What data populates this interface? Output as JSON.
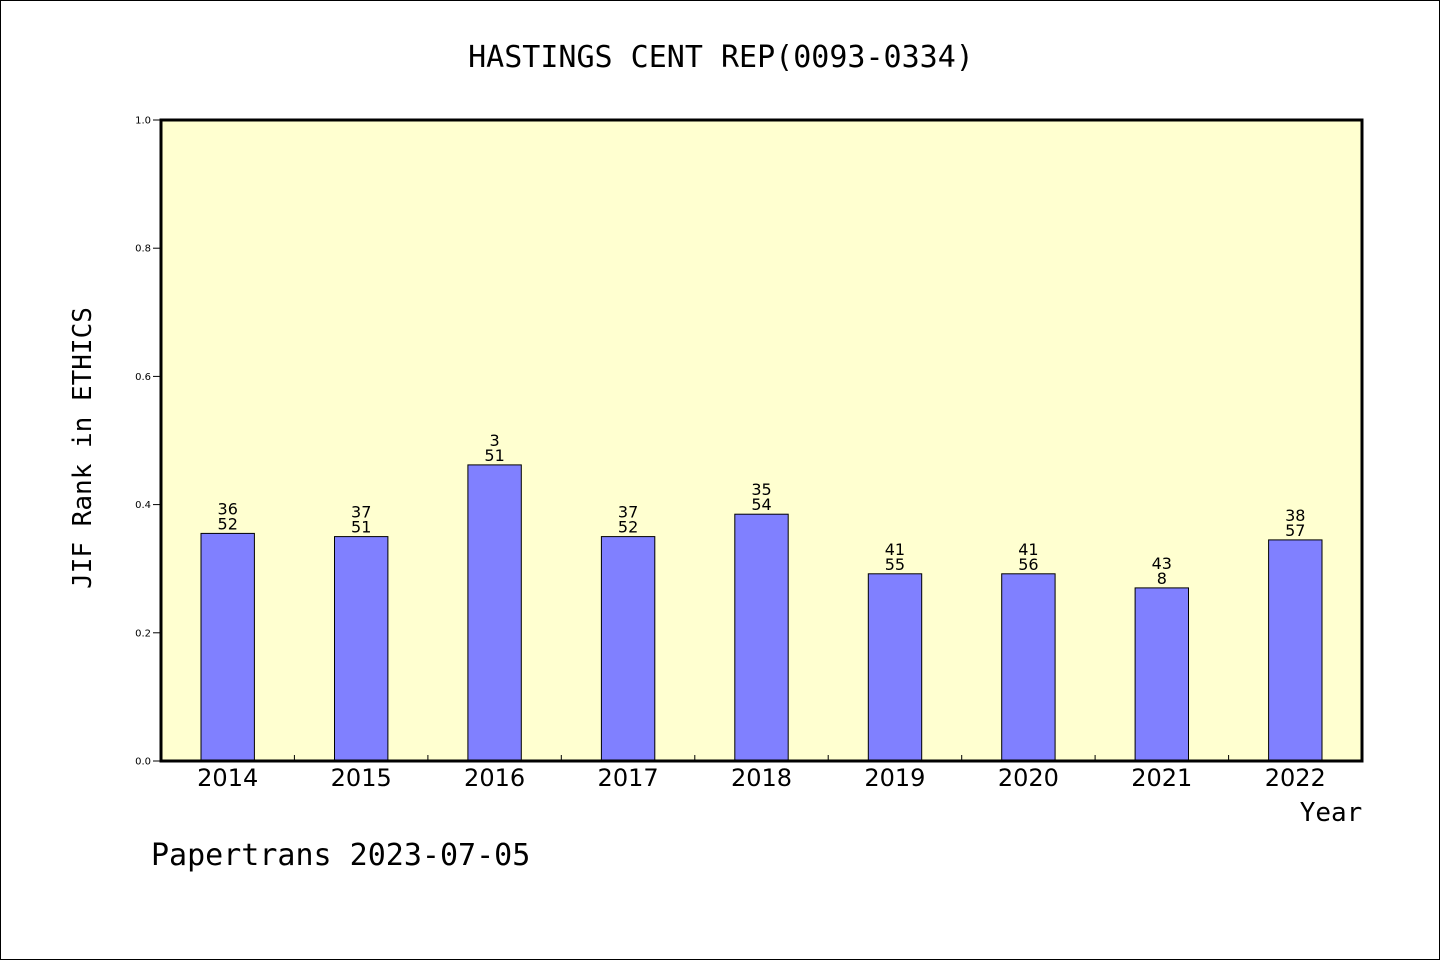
{
  "chart_data": {
    "type": "bar",
    "title": "HASTINGS CENT REP(0093-0334)",
    "xlabel": "Year",
    "ylabel": "JIF Rank in ETHICS",
    "ylim": [
      0,
      1.0
    ],
    "yticks": [
      "0.0",
      "0.2",
      "0.4",
      "0.6",
      "0.8",
      "1.0"
    ],
    "categories": [
      "2014",
      "2015",
      "2016",
      "2017",
      "2018",
      "2019",
      "2020",
      "2021",
      "2022"
    ],
    "values": [
      0.355,
      0.35,
      0.462,
      0.35,
      0.385,
      0.292,
      0.292,
      0.27,
      0.345
    ],
    "labels_top": [
      "36",
      "37",
      "3",
      "37",
      "35",
      "41",
      "41",
      "43",
      "38"
    ],
    "labels_bottom": [
      "52",
      "51",
      "51",
      "52",
      "54",
      "55",
      "56",
      "8",
      "57"
    ],
    "colors": {
      "bar": "#8080ff",
      "plot_background": "#ffffd0"
    },
    "grid": false,
    "legend": "none"
  },
  "footer": "Papertrans 2023-07-05"
}
